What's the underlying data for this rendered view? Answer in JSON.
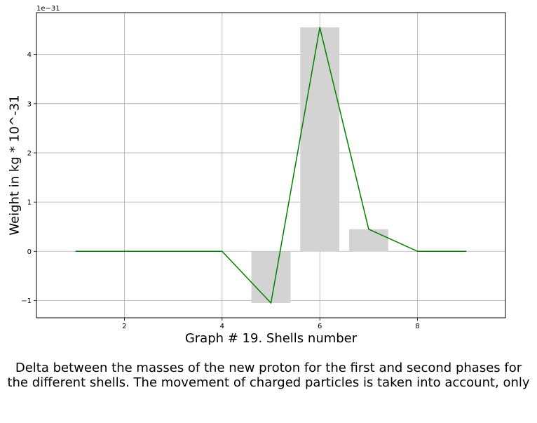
{
  "chart_data": {
    "type": "bar",
    "title": "",
    "xlabel": "Graph # 19. Shells number",
    "ylabel": "Weight in kg * 10^-31",
    "y_offset_label": "1e−31",
    "xlim": [
      0.2,
      9.8
    ],
    "ylim": [
      -1.35,
      4.85
    ],
    "x_ticks": [
      2,
      4,
      6,
      8
    ],
    "x_tick_labels": [
      "2",
      "4",
      "6",
      "8"
    ],
    "y_ticks": [
      -1,
      0,
      1,
      2,
      3,
      4
    ],
    "y_tick_labels": [
      "−1",
      "0",
      "1",
      "2",
      "3",
      "4"
    ],
    "grid": true,
    "bars": {
      "x": [
        5,
        6,
        7
      ],
      "values": [
        -1.05,
        4.55,
        0.45
      ],
      "width": 0.8,
      "color": "#d3d3d3"
    },
    "line": {
      "x": [
        1,
        2,
        3,
        4,
        5,
        6,
        7,
        8,
        9
      ],
      "values": [
        0,
        0,
        0,
        0,
        -1.05,
        4.55,
        0.45,
        0,
        0
      ],
      "color": "#008000"
    }
  },
  "caption": {
    "line1": "Delta between the masses of the new proton for the first and second phases for",
    "line2": "the different shells. The movement of charged particles is taken into account, only"
  }
}
